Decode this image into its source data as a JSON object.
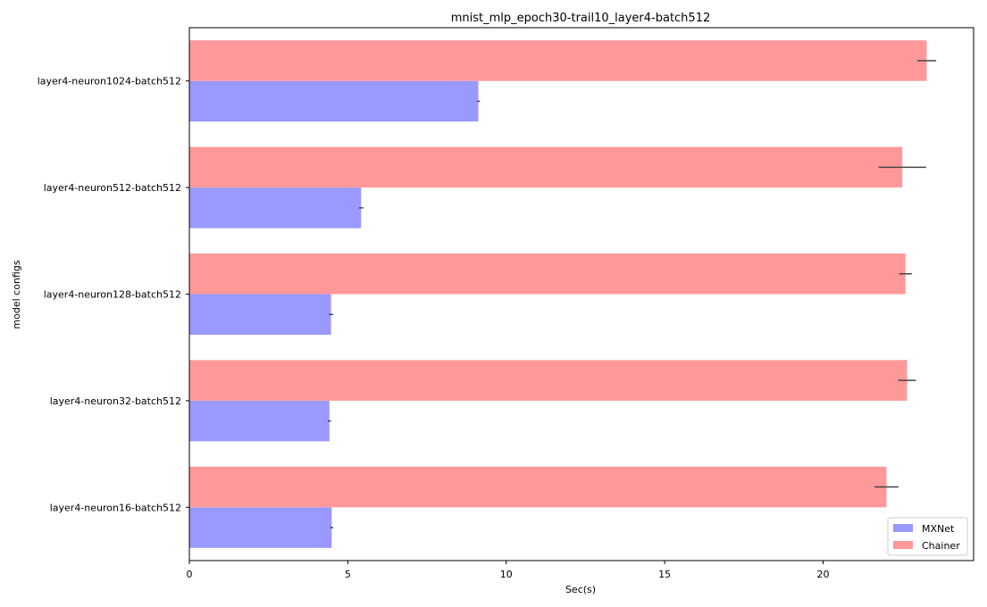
{
  "chart_data": {
    "type": "bar",
    "orientation": "horizontal",
    "title": "mnist_mlp_epoch30-trail10_layer4-batch512",
    "xlabel": "Sec(s)",
    "ylabel": "model configs",
    "xlim": [
      0,
      24.75
    ],
    "xticks": [
      0,
      5,
      10,
      15,
      20
    ],
    "grid": false,
    "legend_position": "lower-right",
    "categories": [
      "layer4-neuron1024-batch512",
      "layer4-neuron512-batch512",
      "layer4-neuron128-batch512",
      "layer4-neuron32-batch512",
      "layer4-neuron16-batch512"
    ],
    "series": [
      {
        "name": "MXNet",
        "color": "#9999ff",
        "values": [
          9.12,
          5.42,
          4.47,
          4.42,
          4.49
        ],
        "errors": [
          0.05,
          0.07,
          0.07,
          0.05,
          0.05
        ]
      },
      {
        "name": "Chainer",
        "color": "#ff9999",
        "values": [
          23.27,
          22.5,
          22.6,
          22.65,
          22.0
        ],
        "errors": [
          0.3,
          0.75,
          0.2,
          0.28,
          0.38
        ]
      }
    ]
  }
}
